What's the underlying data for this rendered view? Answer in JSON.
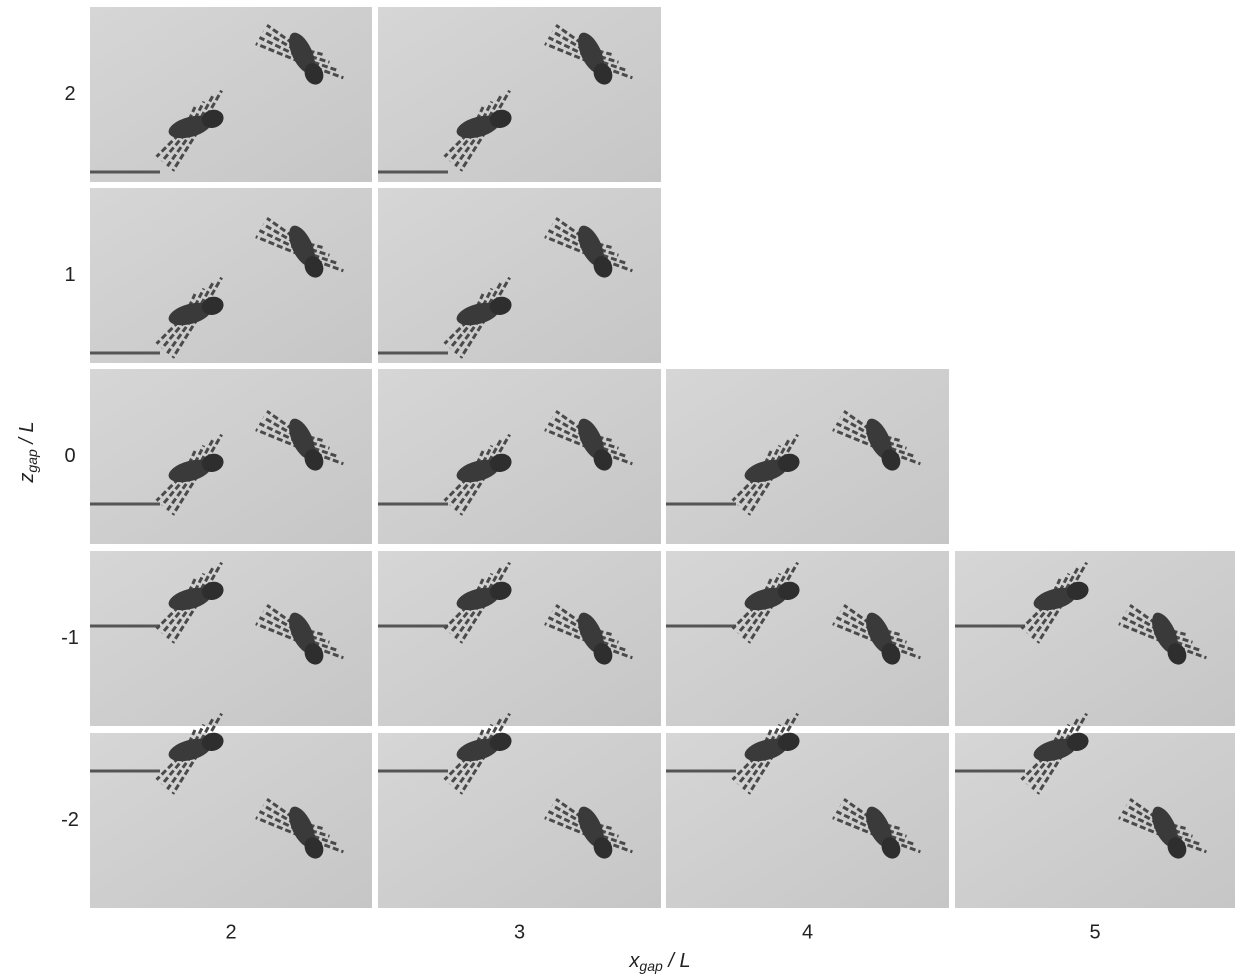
{
  "figure": {
    "row_labels": [
      "2",
      "1",
      "0",
      "-1",
      "-2"
    ],
    "column_labels": [
      "2",
      "3",
      "4",
      "5"
    ],
    "x_axis_label": {
      "main": "x",
      "sub": "gap",
      "rest": " / L"
    },
    "y_axis_label": {
      "main": "z",
      "sub": "gap",
      "rest": " / L"
    }
  }
}
